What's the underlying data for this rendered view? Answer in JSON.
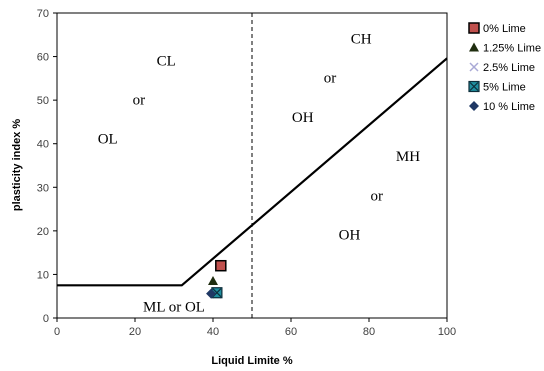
{
  "chart_data": {
    "type": "scatter",
    "xlabel": "Liquid Limite %",
    "ylabel": "plasticity index %",
    "xlim": [
      0,
      100
    ],
    "ylim": [
      0,
      70
    ],
    "xticks": [
      0,
      20,
      40,
      60,
      80,
      100
    ],
    "yticks": [
      0,
      10,
      20,
      30,
      40,
      50,
      60,
      70
    ],
    "grid": false,
    "legend_position": "right",
    "a_line": [
      [
        0,
        7.5
      ],
      [
        32,
        7.5
      ],
      [
        100,
        59.6
      ]
    ],
    "divider_x": 50,
    "region_labels": [
      {
        "text": "CL",
        "x": 28,
        "y": 58
      },
      {
        "text": "or",
        "x": 21,
        "y": 49
      },
      {
        "text": "OL",
        "x": 13,
        "y": 40
      },
      {
        "text": "CH",
        "x": 78,
        "y": 63
      },
      {
        "text": "or",
        "x": 70,
        "y": 54
      },
      {
        "text": "OH",
        "x": 63,
        "y": 45
      },
      {
        "text": "MH",
        "x": 90,
        "y": 36
      },
      {
        "text": "or",
        "x": 82,
        "y": 27
      },
      {
        "text": "OH",
        "x": 75,
        "y": 18
      },
      {
        "text": "ML or OL",
        "x": 30,
        "y": 1.5
      }
    ],
    "series": [
      {
        "name": "0% Lime",
        "marker": "square",
        "color": "#c0504d",
        "border": "#000000",
        "points": [
          [
            42,
            12
          ]
        ]
      },
      {
        "name": "1.25% Lime",
        "marker": "triangle",
        "color": "#1f2d0f",
        "points": [
          [
            40,
            8.5
          ]
        ]
      },
      {
        "name": "2.5% Lime",
        "marker": "x",
        "color": "#a9a9d6",
        "points": [
          [
            41,
            5.5
          ]
        ]
      },
      {
        "name": "5% Lime",
        "marker": "square-x",
        "color": "#1f8f9f",
        "border": "#0d2d3a",
        "points": [
          [
            41,
            5.8
          ]
        ]
      },
      {
        "name": "10 % Lime",
        "marker": "diamond",
        "color": "#1f3864",
        "points": [
          [
            39.5,
            5.6
          ]
        ]
      }
    ]
  }
}
